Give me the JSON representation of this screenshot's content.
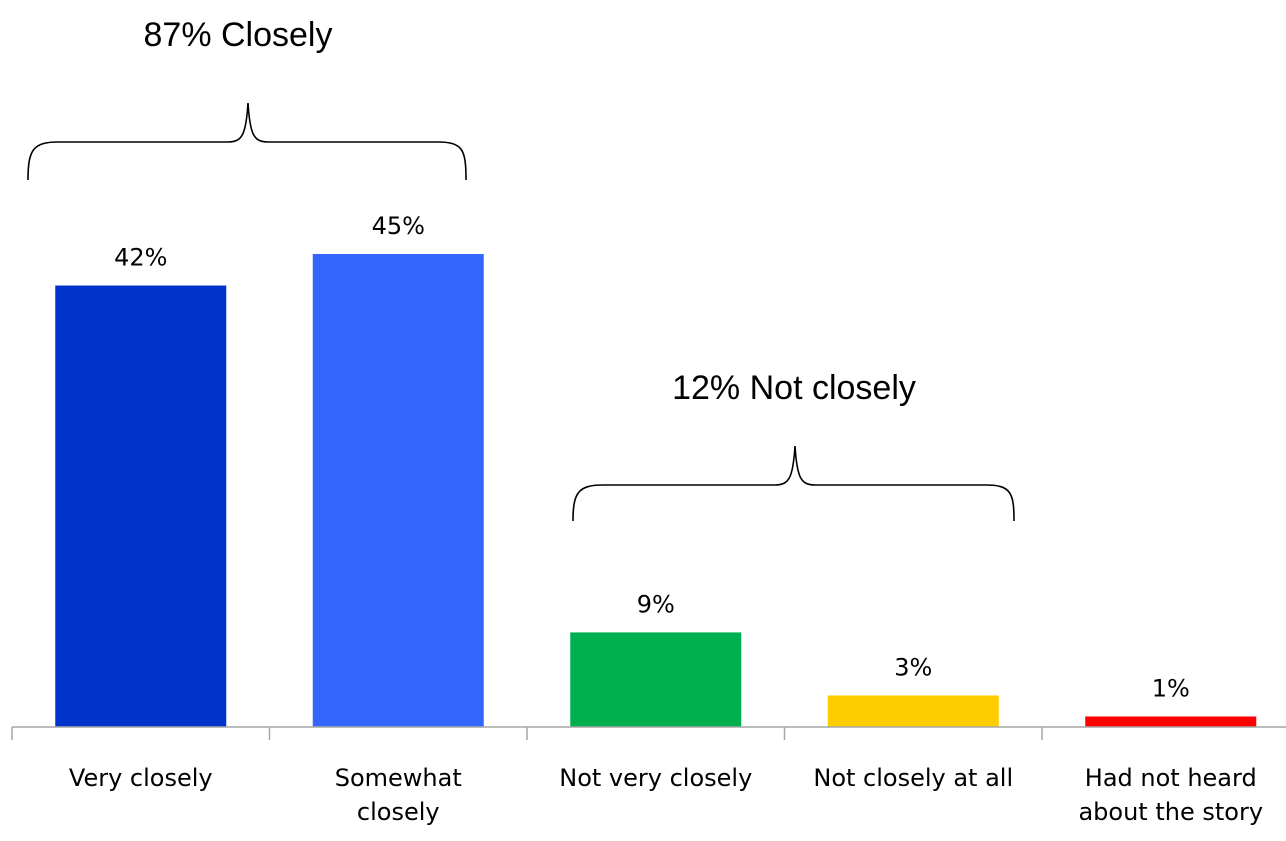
{
  "chart_data": {
    "type": "bar",
    "categories": [
      [
        "Very closely"
      ],
      [
        "Somewhat",
        "closely"
      ],
      [
        "Not very closely"
      ],
      [
        "Not closely at all"
      ],
      [
        "Had not heard",
        "about the story"
      ]
    ],
    "values": [
      42,
      45,
      9,
      3,
      1
    ],
    "data_labels": [
      "42%",
      "45%",
      "9%",
      "3%",
      "1%"
    ],
    "colors": [
      "#0033cc",
      "#3366ff",
      "#00b050",
      "#ffcc00",
      "#ff0000"
    ],
    "ylim": [
      0,
      50
    ],
    "grid": false,
    "legend": "none",
    "annotations": [
      {
        "text": "87% Closely",
        "spans_categories": [
          0,
          1
        ]
      },
      {
        "text": "12% Not closely",
        "spans_categories": [
          2,
          3
        ]
      }
    ]
  }
}
